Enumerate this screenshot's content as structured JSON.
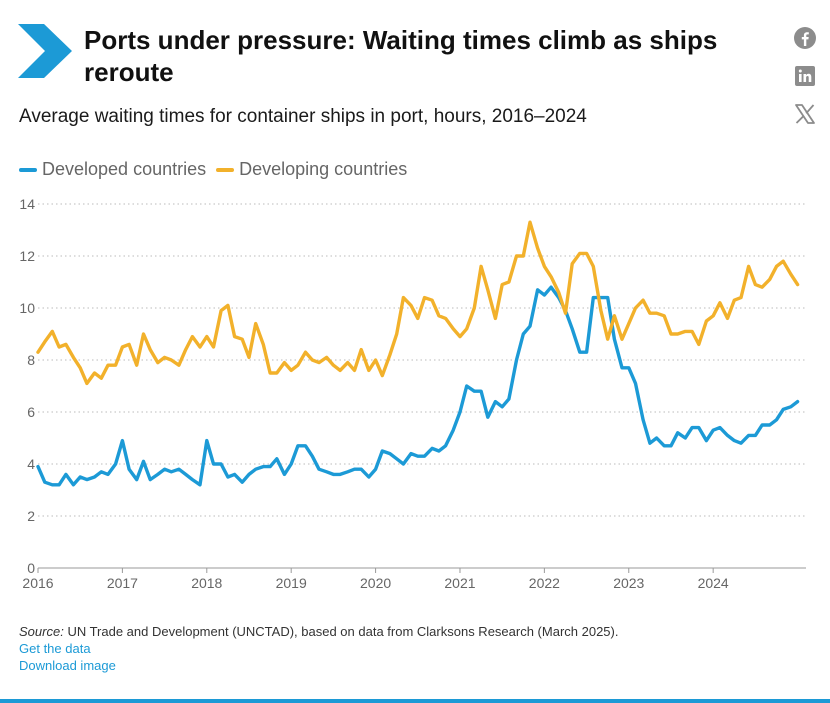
{
  "header": {
    "title": "Ports under pressure: Waiting times climb as ships reroute",
    "subtitle": "Average waiting times for container ships in port, hours, 2016–2024"
  },
  "social": {
    "icons": [
      "facebook-icon",
      "linkedin-icon",
      "x-icon"
    ]
  },
  "colors": {
    "accent": "#1c9ad6",
    "developed": "#1c9ad6",
    "developing": "#f2b12b",
    "grid": "#bbbbbb"
  },
  "legend": {
    "developed": "Developed countries",
    "developing": "Developing countries"
  },
  "footer": {
    "source_label": "Source:",
    "source_text": "UN Trade and Development (UNCTAD), based on data from Clarksons Research (March 2025).",
    "get_data": "Get the data",
    "download": "Download image"
  },
  "chart_data": {
    "type": "line",
    "title": "Average waiting times for container ships in port, hours, 2016–2024",
    "ylim": [
      0,
      14
    ],
    "yticks": [
      "0",
      "2",
      "4",
      "6",
      "8",
      "10",
      "12",
      "14"
    ],
    "xlim": [
      2016,
      2025.1
    ],
    "xticks": [
      "2016",
      "2017",
      "2018",
      "2019",
      "2020",
      "2021",
      "2022",
      "2023",
      "2024"
    ],
    "grid": true,
    "legend_position": "top-left",
    "series": [
      {
        "name": "Developed countries",
        "color": "#1c9ad6",
        "points": [
          [
            2016.0,
            3.9
          ],
          [
            2016.08,
            3.3
          ],
          [
            2016.17,
            3.2
          ],
          [
            2016.25,
            3.2
          ],
          [
            2016.33,
            3.6
          ],
          [
            2016.42,
            3.2
          ],
          [
            2016.5,
            3.5
          ],
          [
            2016.58,
            3.4
          ],
          [
            2016.67,
            3.5
          ],
          [
            2016.75,
            3.7
          ],
          [
            2016.83,
            3.6
          ],
          [
            2016.92,
            4.0
          ],
          [
            2017.0,
            4.9
          ],
          [
            2017.08,
            3.8
          ],
          [
            2017.17,
            3.4
          ],
          [
            2017.25,
            4.1
          ],
          [
            2017.33,
            3.4
          ],
          [
            2017.42,
            3.6
          ],
          [
            2017.5,
            3.8
          ],
          [
            2017.58,
            3.7
          ],
          [
            2017.67,
            3.8
          ],
          [
            2017.75,
            3.6
          ],
          [
            2017.83,
            3.4
          ],
          [
            2017.92,
            3.2
          ],
          [
            2018.0,
            4.9
          ],
          [
            2018.08,
            4.0
          ],
          [
            2018.17,
            4.0
          ],
          [
            2018.25,
            3.5
          ],
          [
            2018.33,
            3.6
          ],
          [
            2018.42,
            3.3
          ],
          [
            2018.5,
            3.6
          ],
          [
            2018.58,
            3.8
          ],
          [
            2018.67,
            3.9
          ],
          [
            2018.75,
            3.9
          ],
          [
            2018.83,
            4.2
          ],
          [
            2018.92,
            3.6
          ],
          [
            2019.0,
            4.0
          ],
          [
            2019.08,
            4.7
          ],
          [
            2019.17,
            4.7
          ],
          [
            2019.25,
            4.3
          ],
          [
            2019.33,
            3.8
          ],
          [
            2019.42,
            3.7
          ],
          [
            2019.5,
            3.6
          ],
          [
            2019.58,
            3.6
          ],
          [
            2019.67,
            3.7
          ],
          [
            2019.75,
            3.8
          ],
          [
            2019.83,
            3.8
          ],
          [
            2019.92,
            3.5
          ],
          [
            2020.0,
            3.8
          ],
          [
            2020.08,
            4.5
          ],
          [
            2020.17,
            4.4
          ],
          [
            2020.25,
            4.2
          ],
          [
            2020.33,
            4.0
          ],
          [
            2020.42,
            4.4
          ],
          [
            2020.5,
            4.3
          ],
          [
            2020.58,
            4.3
          ],
          [
            2020.67,
            4.6
          ],
          [
            2020.75,
            4.5
          ],
          [
            2020.83,
            4.7
          ],
          [
            2020.92,
            5.3
          ],
          [
            2021.0,
            6.0
          ],
          [
            2021.08,
            7.0
          ],
          [
            2021.17,
            6.8
          ],
          [
            2021.25,
            6.8
          ],
          [
            2021.33,
            5.8
          ],
          [
            2021.42,
            6.4
          ],
          [
            2021.5,
            6.2
          ],
          [
            2021.58,
            6.5
          ],
          [
            2021.67,
            8.0
          ],
          [
            2021.75,
            9.0
          ],
          [
            2021.83,
            9.3
          ],
          [
            2021.92,
            10.7
          ],
          [
            2022.0,
            10.5
          ],
          [
            2022.08,
            10.8
          ],
          [
            2022.17,
            10.4
          ],
          [
            2022.25,
            9.9
          ],
          [
            2022.33,
            9.2
          ],
          [
            2022.42,
            8.3
          ],
          [
            2022.5,
            8.3
          ],
          [
            2022.58,
            10.4
          ],
          [
            2022.67,
            10.4
          ],
          [
            2022.75,
            10.4
          ],
          [
            2022.83,
            8.8
          ],
          [
            2022.92,
            7.7
          ],
          [
            2023.0,
            7.7
          ],
          [
            2023.08,
            7.1
          ],
          [
            2023.17,
            5.7
          ],
          [
            2023.25,
            4.8
          ],
          [
            2023.33,
            5.0
          ],
          [
            2023.42,
            4.7
          ],
          [
            2023.5,
            4.7
          ],
          [
            2023.58,
            5.2
          ],
          [
            2023.67,
            5.0
          ],
          [
            2023.75,
            5.4
          ],
          [
            2023.83,
            5.4
          ],
          [
            2023.92,
            4.9
          ],
          [
            2024.0,
            5.3
          ],
          [
            2024.08,
            5.4
          ],
          [
            2024.17,
            5.1
          ],
          [
            2024.25,
            4.9
          ],
          [
            2024.33,
            4.8
          ],
          [
            2024.42,
            5.1
          ],
          [
            2024.5,
            5.1
          ],
          [
            2024.58,
            5.5
          ],
          [
            2024.67,
            5.5
          ],
          [
            2024.75,
            5.7
          ],
          [
            2024.83,
            6.1
          ],
          [
            2024.92,
            6.2
          ],
          [
            2025.0,
            6.4
          ]
        ]
      },
      {
        "name": "Developing countries",
        "color": "#f2b12b",
        "points": [
          [
            2016.0,
            8.3
          ],
          [
            2016.08,
            8.7
          ],
          [
            2016.17,
            9.1
          ],
          [
            2016.25,
            8.5
          ],
          [
            2016.33,
            8.6
          ],
          [
            2016.42,
            8.1
          ],
          [
            2016.5,
            7.7
          ],
          [
            2016.58,
            7.1
          ],
          [
            2016.67,
            7.5
          ],
          [
            2016.75,
            7.3
          ],
          [
            2016.83,
            7.8
          ],
          [
            2016.92,
            7.8
          ],
          [
            2017.0,
            8.5
          ],
          [
            2017.08,
            8.6
          ],
          [
            2017.17,
            7.8
          ],
          [
            2017.25,
            9.0
          ],
          [
            2017.33,
            8.4
          ],
          [
            2017.42,
            7.9
          ],
          [
            2017.5,
            8.1
          ],
          [
            2017.58,
            8.0
          ],
          [
            2017.67,
            7.8
          ],
          [
            2017.75,
            8.4
          ],
          [
            2017.83,
            8.9
          ],
          [
            2017.92,
            8.5
          ],
          [
            2018.0,
            8.9
          ],
          [
            2018.08,
            8.5
          ],
          [
            2018.17,
            9.9
          ],
          [
            2018.25,
            10.1
          ],
          [
            2018.33,
            8.9
          ],
          [
            2018.42,
            8.8
          ],
          [
            2018.5,
            8.1
          ],
          [
            2018.58,
            9.4
          ],
          [
            2018.67,
            8.6
          ],
          [
            2018.75,
            7.5
          ],
          [
            2018.83,
            7.5
          ],
          [
            2018.92,
            7.9
          ],
          [
            2019.0,
            7.6
          ],
          [
            2019.08,
            7.8
          ],
          [
            2019.17,
            8.3
          ],
          [
            2019.25,
            8.0
          ],
          [
            2019.33,
            7.9
          ],
          [
            2019.42,
            8.1
          ],
          [
            2019.5,
            7.8
          ],
          [
            2019.58,
            7.6
          ],
          [
            2019.67,
            7.9
          ],
          [
            2019.75,
            7.6
          ],
          [
            2019.83,
            8.4
          ],
          [
            2019.92,
            7.6
          ],
          [
            2020.0,
            8.0
          ],
          [
            2020.08,
            7.4
          ],
          [
            2020.17,
            8.2
          ],
          [
            2020.25,
            9.0
          ],
          [
            2020.33,
            10.4
          ],
          [
            2020.42,
            10.1
          ],
          [
            2020.5,
            9.6
          ],
          [
            2020.58,
            10.4
          ],
          [
            2020.67,
            10.3
          ],
          [
            2020.75,
            9.7
          ],
          [
            2020.83,
            9.6
          ],
          [
            2020.92,
            9.2
          ],
          [
            2021.0,
            8.9
          ],
          [
            2021.08,
            9.2
          ],
          [
            2021.17,
            10.0
          ],
          [
            2021.25,
            11.6
          ],
          [
            2021.33,
            10.7
          ],
          [
            2021.42,
            9.6
          ],
          [
            2021.5,
            10.9
          ],
          [
            2021.58,
            11.0
          ],
          [
            2021.67,
            12.0
          ],
          [
            2021.75,
            12.0
          ],
          [
            2021.83,
            13.3
          ],
          [
            2021.92,
            12.3
          ],
          [
            2022.0,
            11.6
          ],
          [
            2022.08,
            11.2
          ],
          [
            2022.17,
            10.6
          ],
          [
            2022.25,
            9.8
          ],
          [
            2022.33,
            11.7
          ],
          [
            2022.42,
            12.1
          ],
          [
            2022.5,
            12.1
          ],
          [
            2022.58,
            11.6
          ],
          [
            2022.67,
            9.9
          ],
          [
            2022.75,
            8.8
          ],
          [
            2022.83,
            9.7
          ],
          [
            2022.92,
            8.8
          ],
          [
            2023.0,
            9.4
          ],
          [
            2023.08,
            10.0
          ],
          [
            2023.17,
            10.3
          ],
          [
            2023.25,
            9.8
          ],
          [
            2023.33,
            9.8
          ],
          [
            2023.42,
            9.7
          ],
          [
            2023.5,
            9.0
          ],
          [
            2023.58,
            9.0
          ],
          [
            2023.67,
            9.1
          ],
          [
            2023.75,
            9.1
          ],
          [
            2023.83,
            8.6
          ],
          [
            2023.92,
            9.5
          ],
          [
            2024.0,
            9.7
          ],
          [
            2024.08,
            10.2
          ],
          [
            2024.17,
            9.6
          ],
          [
            2024.25,
            10.3
          ],
          [
            2024.33,
            10.4
          ],
          [
            2024.42,
            11.6
          ],
          [
            2024.5,
            10.9
          ],
          [
            2024.58,
            10.8
          ],
          [
            2024.67,
            11.1
          ],
          [
            2024.75,
            11.6
          ],
          [
            2024.83,
            11.8
          ],
          [
            2024.92,
            11.3
          ],
          [
            2025.0,
            10.9
          ]
        ]
      }
    ]
  }
}
